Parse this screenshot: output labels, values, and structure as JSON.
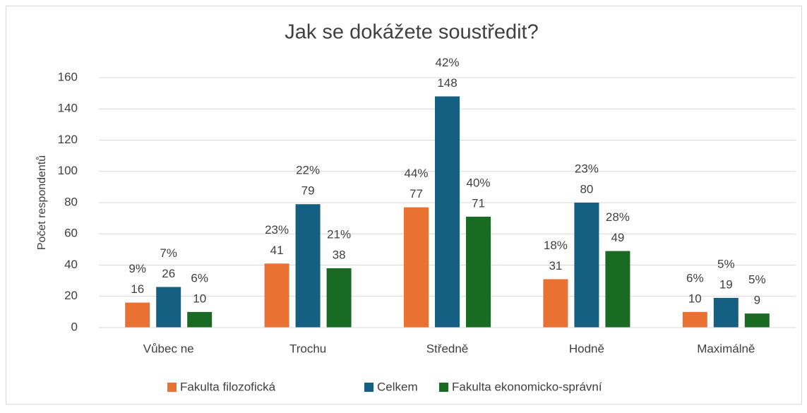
{
  "chart_data": {
    "type": "bar",
    "title": "Jak se dokážete soustředit?",
    "y_label": "Počet respondentů",
    "categories": [
      "Vůbec ne",
      "Trochu",
      "Středně",
      "Hodně",
      "Maximálně"
    ],
    "series": [
      {
        "name": "Fakulta filozofická",
        "color": "#e97132",
        "values": [
          16,
          41,
          77,
          31,
          10
        ],
        "share_labels": [
          "9%",
          "23%",
          "44%",
          "18%",
          "6%"
        ]
      },
      {
        "name": "Celkem",
        "color": "#156082",
        "values": [
          26,
          79,
          148,
          80,
          19
        ],
        "share_labels": [
          "7%",
          "22%",
          "42%",
          "23%",
          "5%"
        ]
      },
      {
        "name": "Fakulta ekonomicko-správní",
        "color": "#196b24",
        "values": [
          10,
          38,
          71,
          49,
          9
        ],
        "share_labels": [
          "6%",
          "21%",
          "40%",
          "28%",
          "5%"
        ]
      }
    ],
    "ylim": [
      0,
      160
    ],
    "yticks": [
      0,
      20,
      40,
      60,
      80,
      100,
      120,
      140,
      160
    ],
    "grid": true,
    "legend": "bottom"
  }
}
